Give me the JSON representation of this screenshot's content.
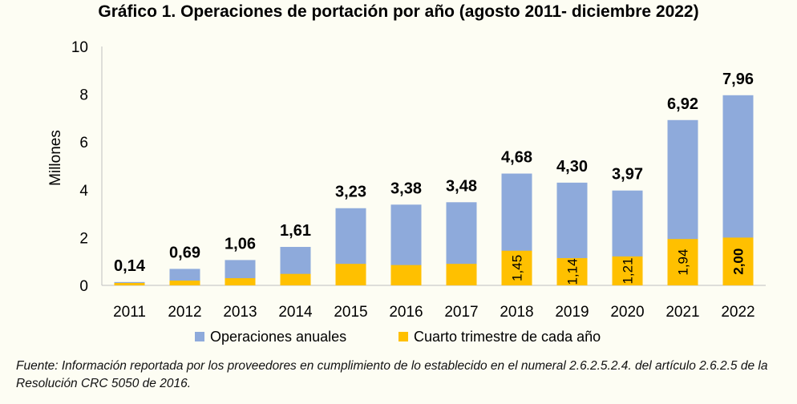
{
  "chart_data": {
    "type": "bar",
    "title": "Gráfico 1. Operaciones de portación por año (agosto 2011- diciembre 2022)",
    "ylabel": "Millones",
    "ylim": [
      0,
      10
    ],
    "yticks": [
      "0",
      "2",
      "4",
      "6",
      "8",
      "10"
    ],
    "categories": [
      "2011",
      "2012",
      "2013",
      "2014",
      "2015",
      "2016",
      "2017",
      "2018",
      "2019",
      "2020",
      "2021",
      "2022"
    ],
    "series": [
      {
        "name": "Operaciones anuales",
        "color": "#8eaadb",
        "values": [
          0.14,
          0.69,
          1.06,
          1.61,
          3.23,
          3.38,
          3.48,
          4.68,
          4.3,
          3.97,
          6.92,
          7.96
        ],
        "labels": [
          "0,14",
          "0,69",
          "1,06",
          "1,61",
          "3,23",
          "3,38",
          "3,48",
          "4,68",
          "4,30",
          "3,97",
          "6,92",
          "7,96"
        ]
      },
      {
        "name": "Cuarto trimestre de cada año",
        "color": "#ffc000",
        "values": [
          0.1,
          0.2,
          0.3,
          0.48,
          0.9,
          0.85,
          0.9,
          1.45,
          1.14,
          1.21,
          1.94,
          2.0
        ],
        "labels": [
          "",
          "",
          "",
          "",
          "",
          "",
          "",
          "1,45",
          "1,14",
          "1,21",
          "1,94",
          "2,00"
        ]
      }
    ],
    "grid": false,
    "legend": "bottom"
  },
  "source": "Fuente: Información reportada por los proveedores en cumplimiento de lo establecido en el numeral 2.6.2.5.2.4. del artículo 2.6.2.5 de la Resolución CRC 5050 de 2016."
}
